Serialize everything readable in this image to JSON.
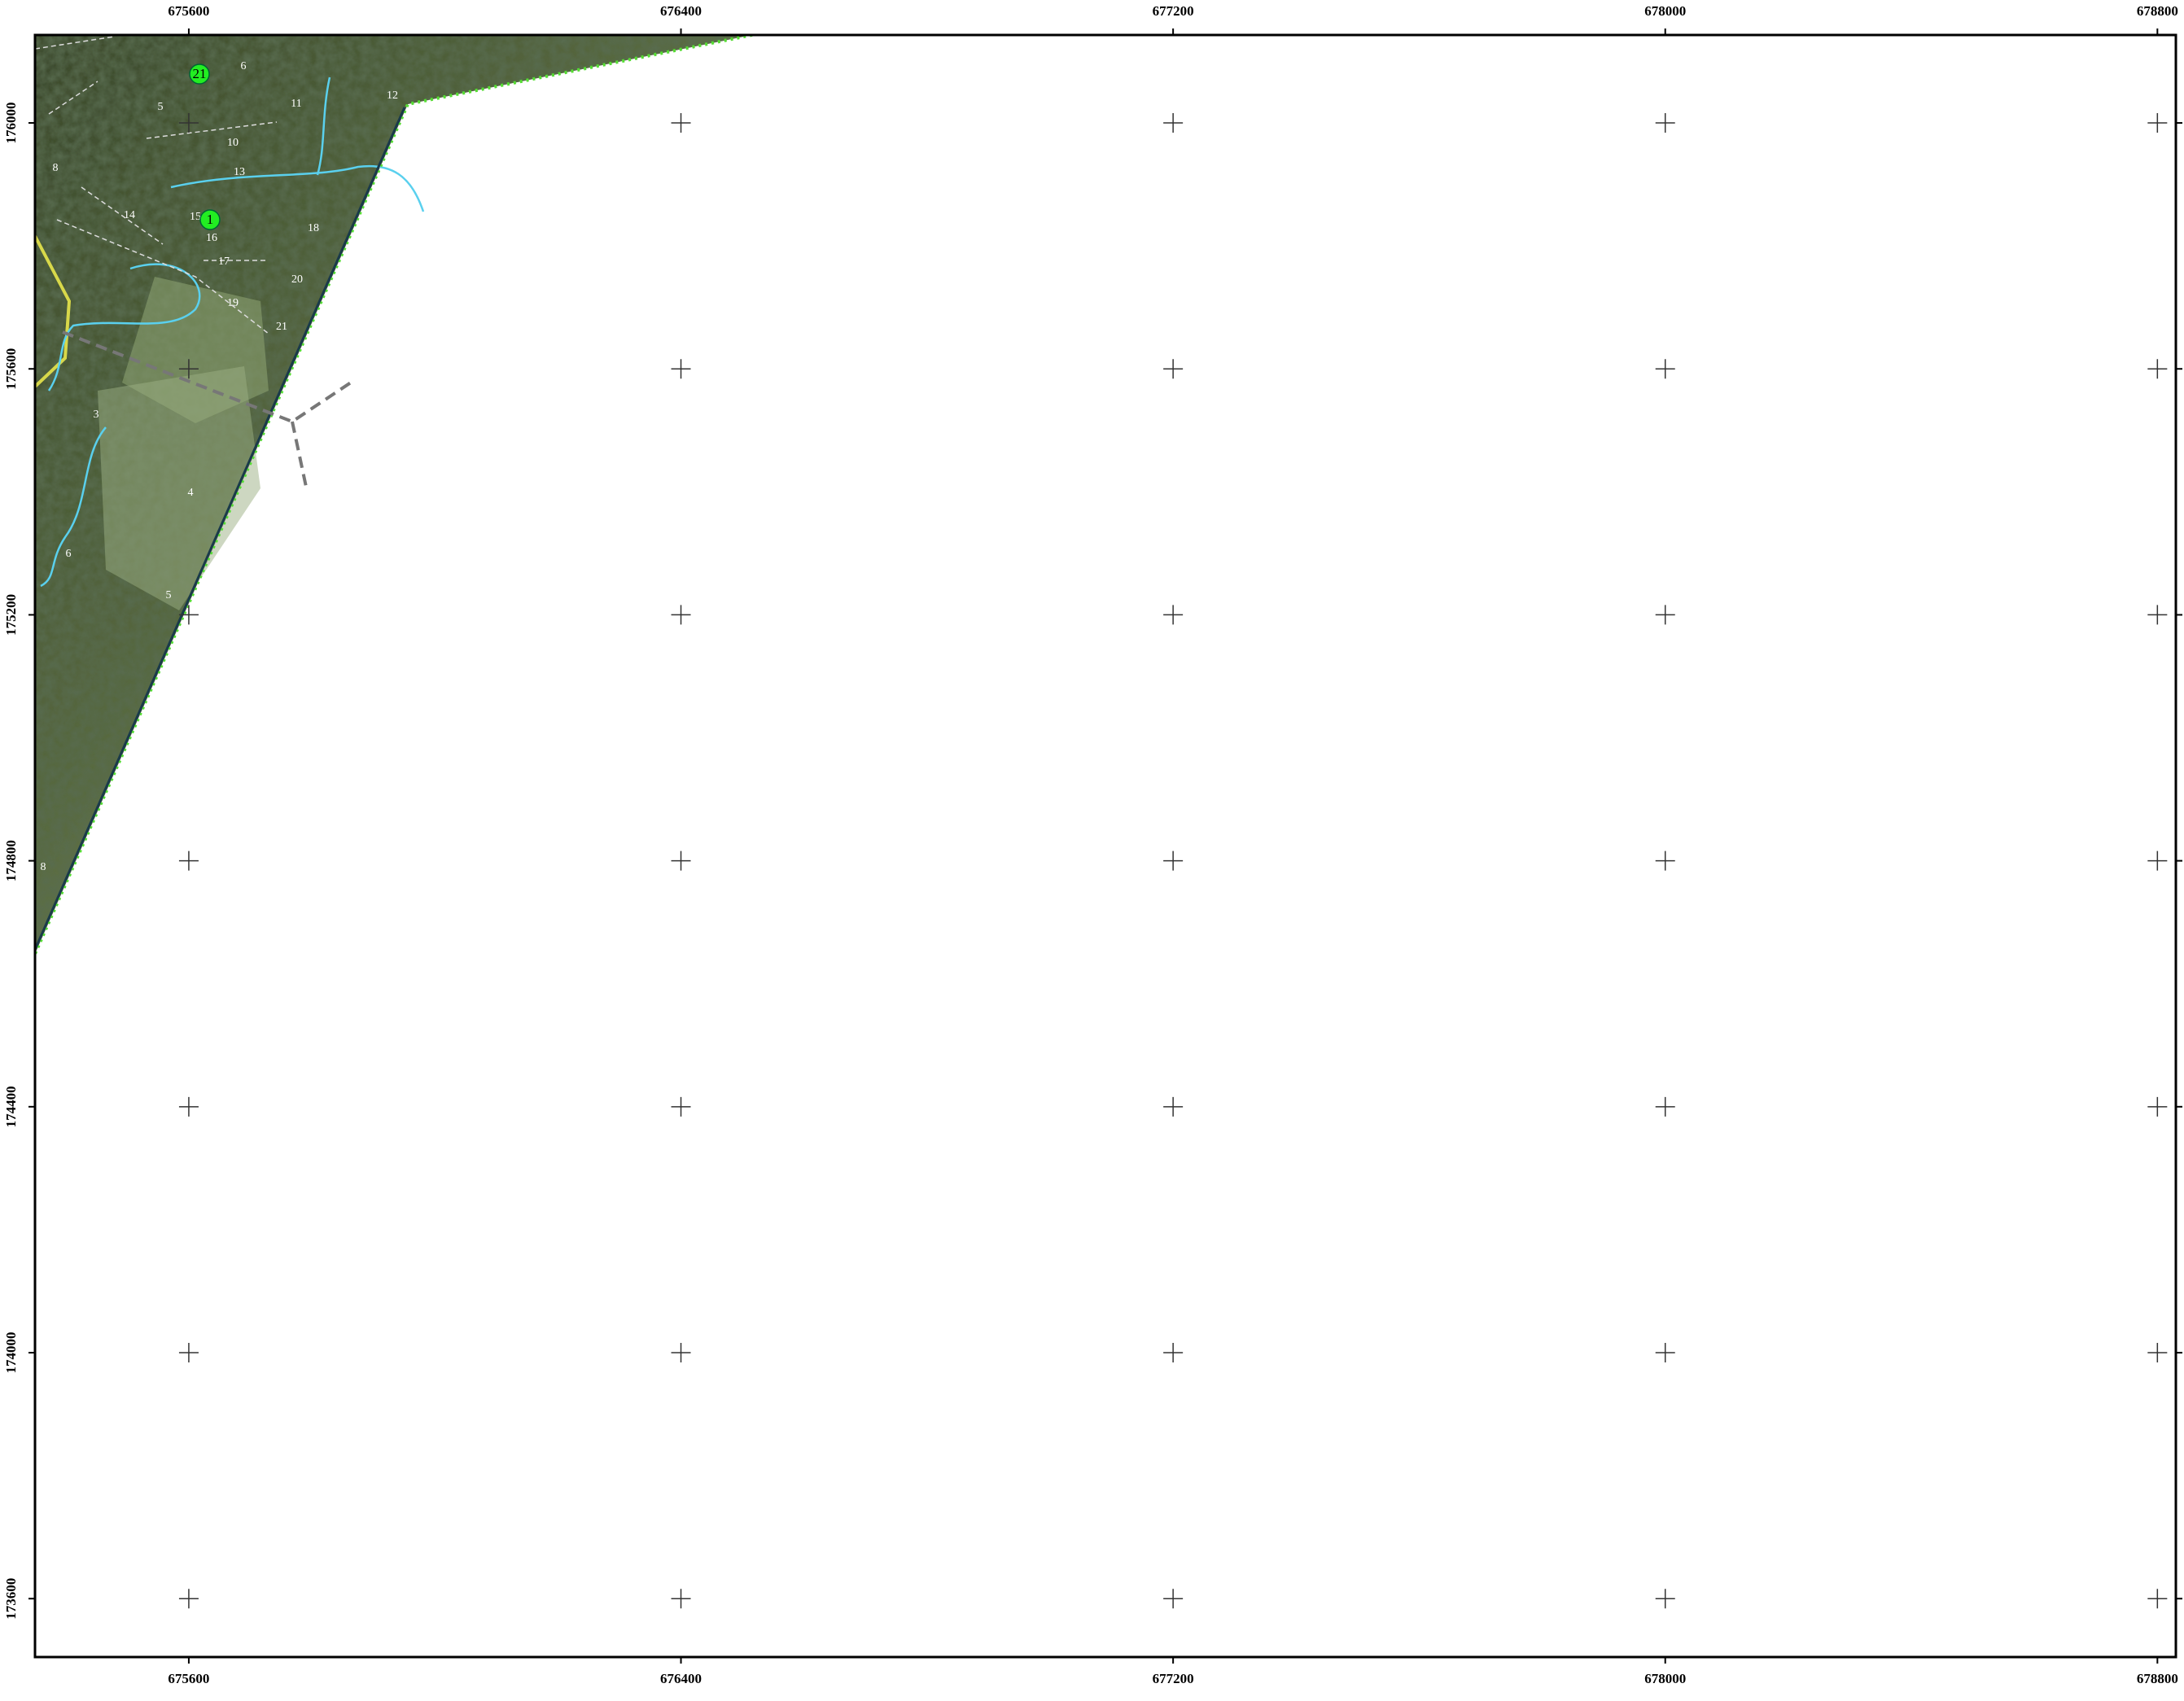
{
  "map": {
    "xticks": [
      675600,
      676400,
      677200,
      678000,
      678800
    ],
    "yticks": [
      176000,
      175600,
      175200,
      174800,
      174400,
      174000,
      173600
    ],
    "xlim": [
      675350,
      678830
    ],
    "ylim": [
      173505,
      176143
    ],
    "points": [
      {
        "label": "21",
        "color": "#22ee22"
      },
      {
        "label": "1",
        "color": "#22ee22"
      }
    ],
    "parcel_labels": [
      "6",
      "5",
      "11",
      "10",
      "13",
      "14",
      "15",
      "16",
      "17",
      "18",
      "20",
      "19",
      "21",
      "12",
      "8",
      "3",
      "4",
      "6",
      "5",
      "8"
    ]
  }
}
